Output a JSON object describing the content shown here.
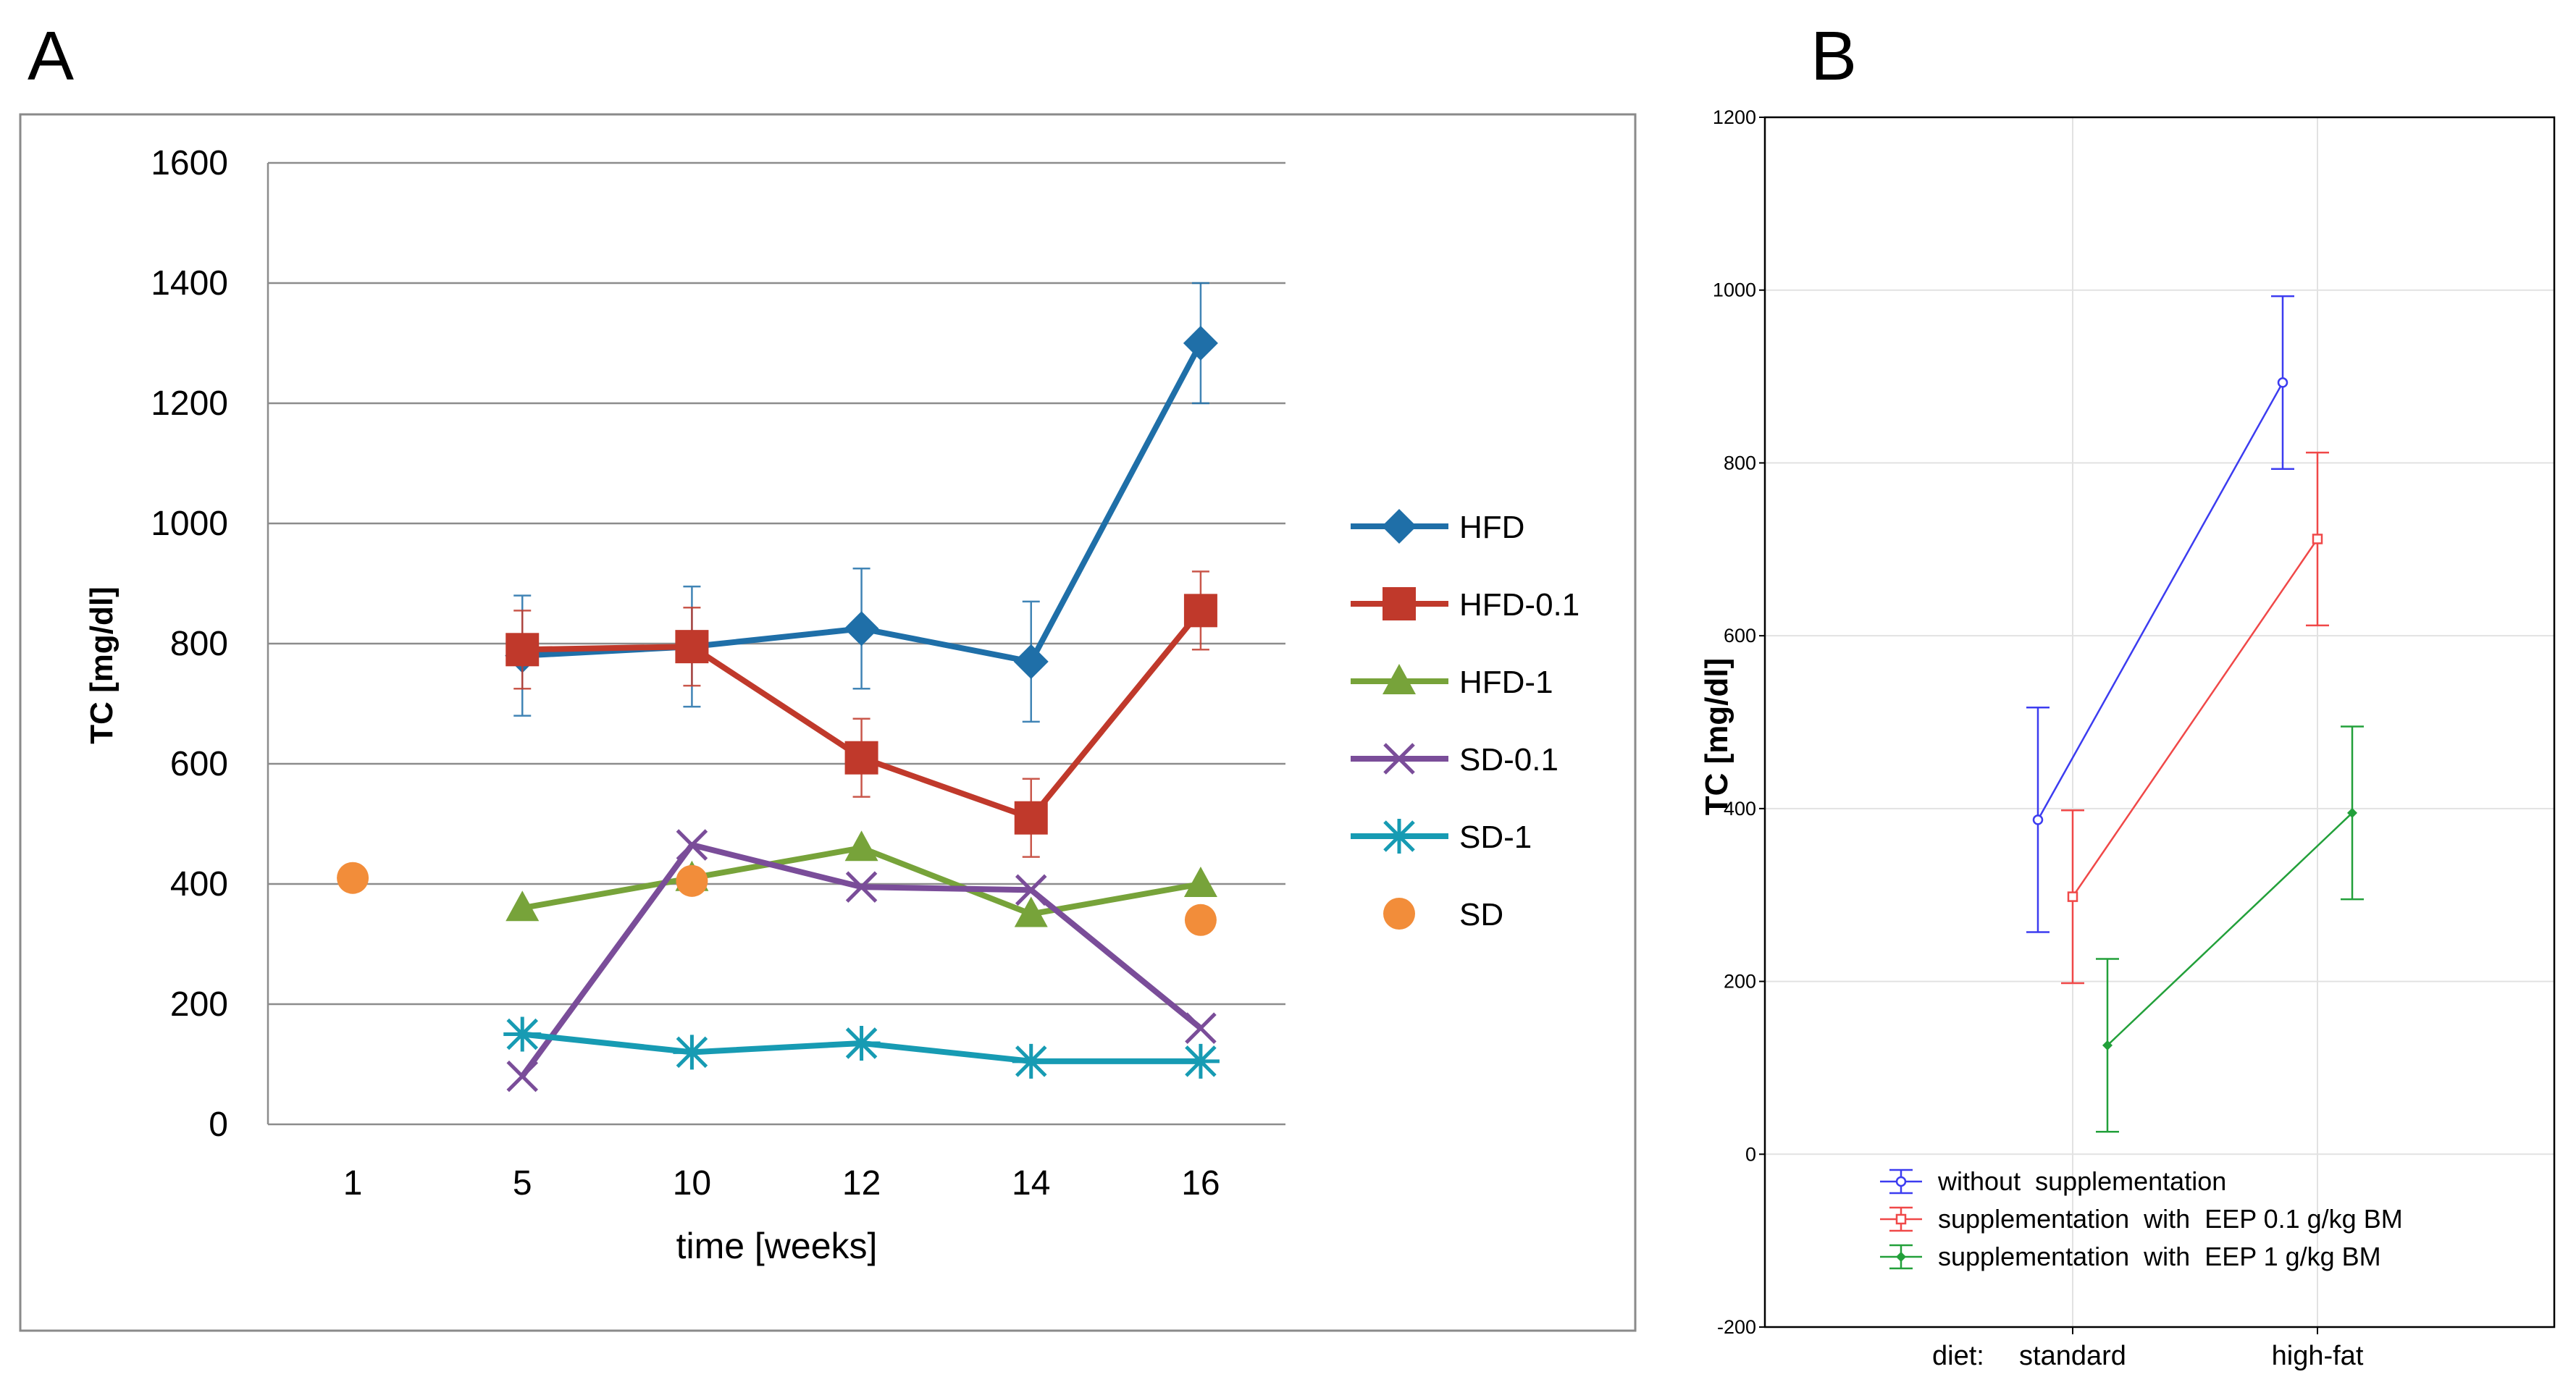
{
  "panels": {
    "a_label": "A",
    "b_label": "B"
  },
  "chart_data": [
    {
      "type": "line",
      "title": "",
      "xlabel": "time [weeks]",
      "ylabel": "TC  [mg/dl]",
      "categories": [
        "1",
        "5",
        "10",
        "12",
        "14",
        "16"
      ],
      "ylim": [
        0,
        1600
      ],
      "yticks": [
        0,
        200,
        400,
        600,
        800,
        1000,
        1200,
        1400,
        1600
      ],
      "grid": true,
      "legend_position": "right",
      "series": [
        {
          "name": "HFD",
          "color": "#1f6fa8",
          "marker": "diamond",
          "values": [
            null,
            780,
            795,
            825,
            770,
            1300
          ],
          "errors": [
            null,
            100,
            100,
            100,
            100,
            100
          ]
        },
        {
          "name": "HFD-0.1",
          "color": "#c0392b",
          "marker": "square",
          "values": [
            null,
            790,
            795,
            610,
            510,
            855
          ],
          "errors": [
            null,
            65,
            65,
            65,
            65,
            65
          ]
        },
        {
          "name": "HFD-1",
          "color": "#77a33a",
          "marker": "triangle",
          "values": [
            null,
            360,
            410,
            460,
            350,
            400
          ],
          "errors": [
            null,
            null,
            null,
            null,
            null,
            null
          ]
        },
        {
          "name": "SD-0.1",
          "color": "#7a4d99",
          "marker": "x",
          "values": [
            null,
            80,
            465,
            395,
            390,
            160
          ],
          "errors": [
            null,
            null,
            null,
            null,
            null,
            null
          ]
        },
        {
          "name": "SD-1",
          "color": "#179bb3",
          "marker": "star",
          "values": [
            null,
            150,
            120,
            135,
            105,
            105
          ],
          "errors": [
            null,
            null,
            null,
            null,
            null,
            null
          ]
        },
        {
          "name": "SD",
          "color": "#f28d3a",
          "marker": "circle",
          "line": false,
          "values": [
            410,
            null,
            405,
            null,
            null,
            340
          ],
          "errors": [
            null,
            null,
            null,
            null,
            null,
            null
          ]
        }
      ]
    },
    {
      "type": "line",
      "title": "",
      "xlabel": "diet:",
      "ylabel": "TC [mg/dl]",
      "categories": [
        "standard",
        "high-fat"
      ],
      "ylim": [
        -200,
        1200
      ],
      "yticks": [
        -200,
        0,
        200,
        400,
        600,
        800,
        1000,
        1200
      ],
      "grid": true,
      "legend_position": "bottom-left",
      "series": [
        {
          "name": "without  supplementation",
          "color": "#3c3cf0",
          "values": [
            387,
            893
          ],
          "errors": [
            130,
            100
          ]
        },
        {
          "name": "supplementation  with  EEP 0.1 g/kg BM",
          "color": "#f04848",
          "values": [
            298,
            712
          ],
          "errors": [
            100,
            100
          ]
        },
        {
          "name": "supplementation  with  EEP 1 g/kg BM",
          "color": "#22a03a",
          "values": [
            126,
            395
          ],
          "errors": [
            100,
            100
          ]
        }
      ]
    }
  ]
}
